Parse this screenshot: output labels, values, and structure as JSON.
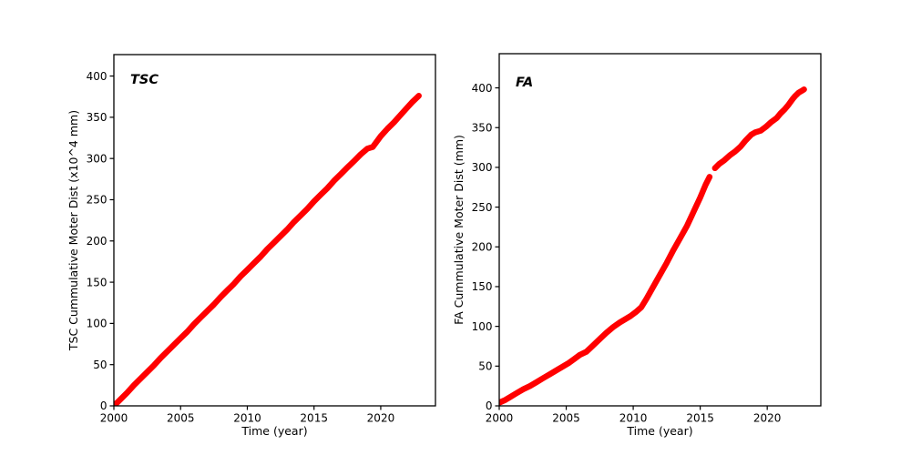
{
  "figure": {
    "background": "#ffffff",
    "text_color": "#000000"
  },
  "chart_data": [
    {
      "type": "line",
      "annotation": "TSC",
      "xlabel": "Time (year)",
      "ylabel": "TSC Cummulative Moter Dist (x10^4 mm)",
      "color": "#ff0000",
      "grid": false,
      "legend": null,
      "xlim": [
        2000,
        2024.1
      ],
      "ylim": [
        0,
        426
      ],
      "xticks": [
        2000,
        2005,
        2010,
        2015,
        2020
      ],
      "yticks": [
        0,
        50,
        100,
        150,
        200,
        250,
        300,
        350,
        400
      ],
      "segments": [
        {
          "x": [
            2000,
            2000.5,
            2001,
            2001.5,
            2002,
            2002.5,
            2003,
            2003.5,
            2004,
            2004.5,
            2005,
            2005.5,
            2006,
            2006.5,
            2007,
            2007.5,
            2008,
            2008.5,
            2009,
            2009.5,
            2010,
            2010.5,
            2011,
            2011.5,
            2012,
            2012.5,
            2013,
            2013.5,
            2014,
            2014.5,
            2015,
            2015.5,
            2016,
            2016.5,
            2017,
            2017.5,
            2018,
            2018.5,
            2019,
            2019.4,
            2020,
            2020.5,
            2021,
            2021.5,
            2022,
            2022.4,
            2022.85
          ],
          "y": [
            0,
            8,
            16,
            25,
            33,
            41,
            49,
            58,
            66,
            74,
            82,
            90,
            99,
            107,
            115,
            123,
            132,
            140,
            148,
            157,
            165,
            173,
            181,
            190,
            198,
            206,
            214,
            223,
            231,
            239,
            248,
            256,
            264,
            273,
            281,
            289,
            297,
            305,
            312,
            314,
            327,
            336,
            344,
            353,
            362,
            369,
            376
          ]
        }
      ]
    },
    {
      "type": "line",
      "annotation": "FA",
      "xlabel": "Time (year)",
      "ylabel": "FA Cummulative Moter Dist (mm)",
      "color": "#ff0000",
      "grid": false,
      "legend": null,
      "xlim": [
        2000,
        2024
      ],
      "ylim": [
        0,
        443
      ],
      "xticks": [
        2000,
        2005,
        2010,
        2015,
        2020
      ],
      "yticks": [
        0,
        50,
        100,
        150,
        200,
        250,
        300,
        350,
        400
      ],
      "segments": [
        {
          "x": [
            2000,
            2000.4,
            2000.8,
            2001.3,
            2001.8,
            2002.3,
            2002.8,
            2003.3,
            2003.8,
            2004.3,
            2004.8,
            2005.2,
            2005.6,
            2006,
            2006.5,
            2007,
            2007.5,
            2008,
            2008.5,
            2009,
            2009.4,
            2009.8,
            2010.2,
            2010.6,
            2011,
            2011.5,
            2012,
            2012.5,
            2013,
            2013.5,
            2014,
            2014.5,
            2015,
            2015.4,
            2015.7
          ],
          "y": [
            4,
            7,
            11,
            16,
            21,
            25,
            30,
            35,
            40,
            45,
            50,
            54,
            59,
            64,
            68,
            76,
            84,
            92,
            99,
            105,
            109,
            113,
            118,
            124,
            135,
            150,
            165,
            180,
            196,
            211,
            226,
            244,
            262,
            278,
            288
          ]
        },
        {
          "x": [
            2016.1,
            2016.4,
            2016.8,
            2017.2,
            2017.6,
            2018,
            2018.4,
            2018.8,
            2019.1,
            2019.5,
            2019.9,
            2020.3,
            2020.7,
            2021,
            2021.3,
            2021.6,
            2021.9,
            2022.1,
            2022.35,
            2022.55,
            2022.75
          ],
          "y": [
            299,
            304,
            309,
            315,
            320,
            326,
            334,
            341,
            344,
            346,
            351,
            357,
            362,
            368,
            373,
            379,
            386,
            390,
            394,
            396,
            398
          ]
        }
      ]
    }
  ]
}
